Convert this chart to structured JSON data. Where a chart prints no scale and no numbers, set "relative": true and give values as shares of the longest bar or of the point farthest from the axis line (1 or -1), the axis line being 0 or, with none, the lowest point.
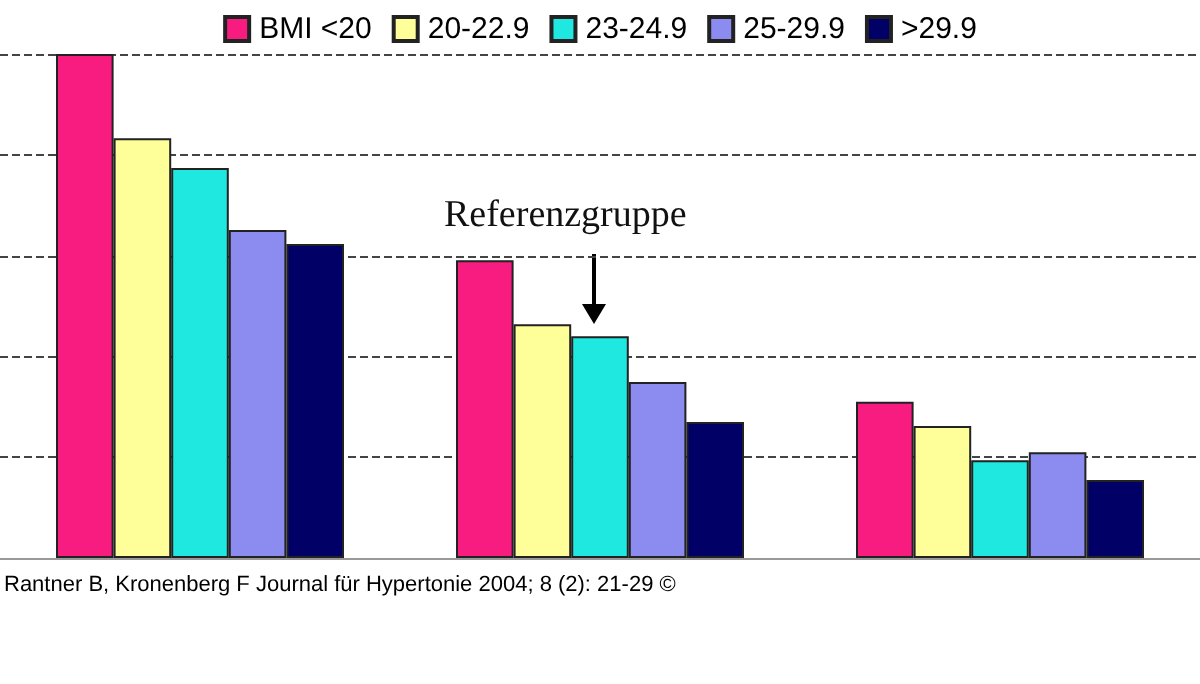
{
  "chart_data": {
    "type": "bar",
    "relative": true,
    "categories": [
      null,
      null,
      null
    ],
    "series": [
      {
        "name": "BMI <20",
        "color": "#f81c80",
        "values": [
          1,
          0.591,
          0.31
        ]
      },
      {
        "name": "20-22.9",
        "color": "#ffff99",
        "values": [
          0.833,
          0.464,
          0.262
        ]
      },
      {
        "name": "23-24.9",
        "color": "#1ee8e0",
        "values": [
          0.774,
          0.44,
          0.194
        ]
      },
      {
        "name": "25-29.9",
        "color": "#8c8cf0",
        "values": [
          0.651,
          0.349,
          0.21
        ]
      },
      {
        "name": ">29.9",
        "color": "#000066",
        "values": [
          0.623,
          0.27,
          0.155
        ]
      }
    ],
    "grid": "y",
    "legend": "top",
    "annotations": [
      "Referenzgruppe",
      "Rantner B, Kronenberg F Journal für Hypertonie 2004; 8 (2): 21-29 ©"
    ]
  }
}
